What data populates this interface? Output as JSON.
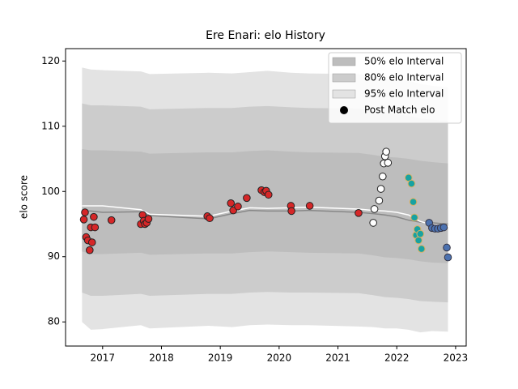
{
  "chart_data": {
    "type": "scatter",
    "title": "Ere Enari: elo History",
    "ylabel": "elo score",
    "xlim": [
      2016.37,
      2023.18
    ],
    "ylim": [
      76.3,
      121.9
    ],
    "xticks": [
      2017,
      2018,
      2019,
      2020,
      2021,
      2022,
      2023
    ],
    "yticks": [
      80,
      90,
      100,
      110,
      120
    ],
    "bands": {
      "x": [
        2016.65,
        2016.8,
        2017.0,
        2017.65,
        2017.8,
        2018.8,
        2019.2,
        2019.5,
        2019.8,
        2020.2,
        2020.5,
        2021.35,
        2021.6,
        2021.8,
        2022.0,
        2022.2,
        2022.4,
        2022.6,
        2022.87
      ],
      "series": [
        {
          "name": "95% elo Interval",
          "color": "#e3e3e3",
          "upper": [
            119,
            118.7,
            118.6,
            118.4,
            118,
            118.2,
            118.1,
            118.3,
            118.5,
            118.2,
            118.1,
            118,
            117.6,
            117.3,
            117.2,
            117,
            116.5,
            116.2,
            116
          ],
          "lower": [
            80,
            78.8,
            78.9,
            79.5,
            79,
            79.4,
            79.2,
            79.5,
            79.6,
            79.5,
            79.5,
            79.3,
            79.2,
            79,
            79,
            78.8,
            78.4,
            78.6,
            78.5
          ]
        },
        {
          "name": "80% elo Interval",
          "color": "#cccccc",
          "upper": [
            113.5,
            113.2,
            113.2,
            113,
            112.6,
            112.8,
            112.8,
            113,
            113.1,
            112.9,
            112.8,
            112.7,
            112.3,
            112,
            111.8,
            111.6,
            111.2,
            111,
            110.8
          ],
          "lower": [
            84.5,
            84,
            84,
            84.3,
            84,
            84.3,
            84.3,
            84.5,
            84.6,
            84.5,
            84.5,
            84.4,
            84.1,
            83.8,
            83.7,
            83.5,
            83.2,
            83.1,
            83
          ]
        },
        {
          "name": "50% elo Interval",
          "color": "#bdbdbd",
          "upper": [
            106.5,
            106.3,
            106.3,
            106.1,
            105.8,
            106,
            106,
            106.2,
            106.3,
            106.1,
            106,
            105.9,
            105.6,
            105.3,
            105.2,
            105,
            104.7,
            104.5,
            104.3
          ],
          "lower": [
            90.8,
            90.4,
            90.4,
            90.6,
            90.3,
            90.5,
            90.5,
            90.7,
            90.8,
            90.7,
            90.6,
            90.5,
            90.2,
            89.9,
            89.8,
            89.6,
            89.3,
            89.1,
            89
          ]
        }
      ],
      "lines": [
        {
          "color": "#888888",
          "values": [
            97,
            97,
            96.8,
            96.9,
            96.3,
            95.8,
            96.6,
            97.1,
            97,
            97,
            97.1,
            96.8,
            96.6,
            96.4,
            96.1,
            95.6,
            95.3,
            95.2,
            95
          ]
        },
        {
          "color": "#ffffff",
          "values": [
            97.8,
            97.8,
            97.8,
            97.2,
            96.5,
            96.2,
            97,
            97.5,
            97.4,
            97.5,
            97.6,
            97.3,
            97.1,
            97,
            96.8,
            96.4,
            95.4,
            94.9,
            94.6
          ]
        }
      ]
    },
    "points_legend": "Post Match elo",
    "point_groups": [
      {
        "color": "#d62728",
        "edge": "#222222",
        "x": [
          2016.7,
          2016.68,
          2016.72,
          2016.75,
          2016.78,
          2016.8,
          2016.82,
          2016.85,
          2016.87,
          2017.15,
          2017.65,
          2017.68,
          2017.7,
          2017.72,
          2017.75,
          2017.78,
          2018.78,
          2018.82,
          2019.18,
          2019.22,
          2019.3,
          2019.45,
          2019.7,
          2019.75,
          2019.78,
          2019.82,
          2020.2,
          2020.21,
          2020.52,
          2021.35
        ],
        "values": [
          96.8,
          95.7,
          93,
          92.5,
          91,
          94.5,
          92.2,
          96.1,
          94.5,
          95.6,
          95,
          96.4,
          95.5,
          95,
          95.2,
          95.8,
          96.2,
          95.9,
          98.2,
          97.1,
          97.7,
          99,
          100.2,
          99.9,
          100.1,
          99.5,
          97.8,
          97,
          97.8,
          96.7
        ]
      },
      {
        "color": "#ffffff",
        "edge": "#222222",
        "x": [
          2021.6,
          2021.62,
          2021.7,
          2021.73,
          2021.76,
          2021.78,
          2021.8,
          2021.82,
          2021.85
        ],
        "values": [
          95.2,
          97.3,
          98.6,
          100.4,
          102.3,
          104.3,
          105.4,
          106.1,
          104.4
        ]
      },
      {
        "color": "#17a2a2",
        "edge": "#e0b060",
        "x": [
          2022.2,
          2022.25,
          2022.28,
          2022.3,
          2022.33,
          2022.35,
          2022.37,
          2022.4,
          2022.42
        ],
        "values": [
          102.1,
          101.2,
          98.4,
          96,
          93.3,
          94.2,
          92.5,
          93.5,
          91.2
        ]
      },
      {
        "color": "#4c72b0",
        "edge": "#333344",
        "x": [
          2022.55,
          2022.6,
          2022.65,
          2022.7,
          2022.75,
          2022.8,
          2022.85,
          2022.87
        ],
        "values": [
          95.2,
          94.4,
          94.3,
          94.3,
          94.4,
          94.5,
          91.4,
          89.9
        ]
      }
    ]
  }
}
